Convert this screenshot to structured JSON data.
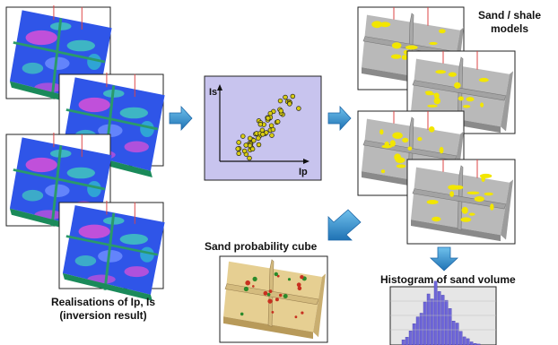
{
  "labels": {
    "sand_shale_title": "Sand / shale\nmodels",
    "probability_cube": "Sand probability cube",
    "histogram": "Histogram of sand volume",
    "realisations": "Realisations of Ip, Is\n(inversion result)"
  },
  "crossplot": {
    "y_axis": "Is",
    "x_axis": "Ip",
    "point_count": 58
  },
  "colors": {
    "arrow": "#3a8fc8",
    "crossplot_bg": "#c8c4ee",
    "points": "#d8cc12",
    "sand": "#f2e600",
    "histogram_bars": "#6f67d8",
    "realisation_blue": "#2f55e8",
    "realisation_magenta": "#d050d8",
    "realisation_cyan": "#40c0c0",
    "probability_cube": "#e6cf92"
  },
  "icons": [
    "arrow-right-icon",
    "arrow-down-left-icon",
    "arrow-down-icon"
  ]
}
